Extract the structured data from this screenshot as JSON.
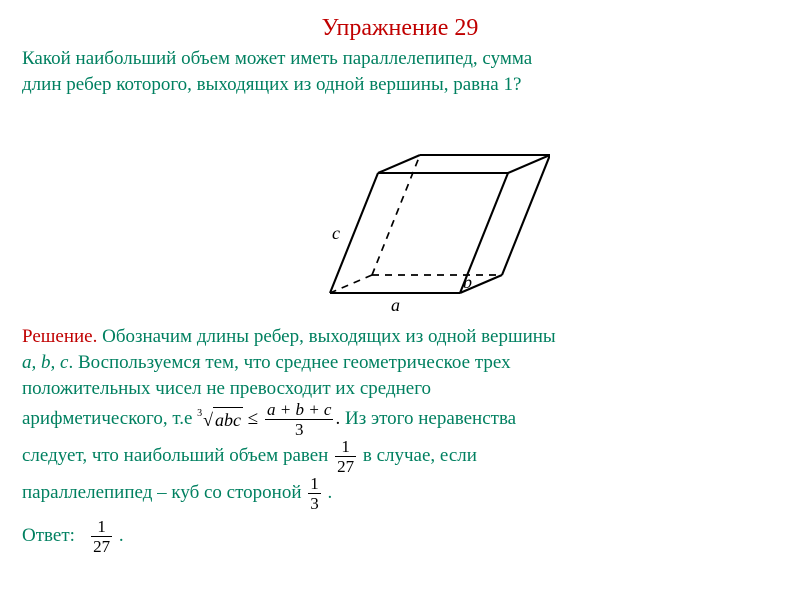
{
  "title": "Упражнение 29",
  "problem": {
    "line1": "Какой наибольший объем может иметь параллелепипед, сумма",
    "line2": "длин ребер которого, выходящих из одной вершины, равна 1?"
  },
  "figure": {
    "label_a": "a",
    "label_b": "b",
    "label_c": "c",
    "stroke_solid": "#000000",
    "stroke_dashed": "#000000",
    "label_color": "#000000",
    "label_fontsize": 18
  },
  "solution": {
    "label": "Решение.",
    "p1a": " Обозначим длины ребер, выходящих из одной вершины",
    "p1b_vars": "a, b, c",
    "p1c": ". Воспользуемся тем, что среднее геометрическое трех",
    "p1d": "положительных чисел не превосходит их среднего",
    "p1e": "арифметического, т.е  ",
    "ineq": {
      "root_index": "3",
      "root_body": "abc",
      "le": " ≤ ",
      "frac_num": "a + b + c",
      "frac_den": "3",
      "period": "."
    },
    "p2a": "  Из этого неравенства",
    "p2b": "следует, что наибольший объем равен ",
    "max_vol": {
      "num": "1",
      "den": "27"
    },
    "p2c": "  в случае, если",
    "p3a": "параллелепипед – куб со стороной ",
    "side": {
      "num": "1",
      "den": "3"
    },
    "p3b": " ."
  },
  "answer": {
    "label": "Ответ:",
    "frac": {
      "num": "1",
      "den": "27"
    },
    "period": " ."
  }
}
